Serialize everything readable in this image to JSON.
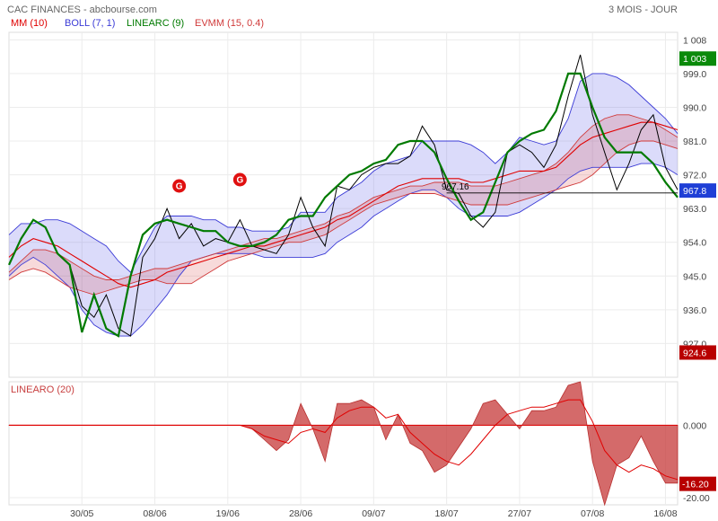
{
  "header": {
    "source": "CAC FINANCES - abcbourse.com",
    "period": "3 MOIS - JOUR",
    "legend": [
      {
        "label": "MM (10)",
        "color": "#e00000"
      },
      {
        "label": "BOLL (7, 1)",
        "color": "#3b3bd6"
      },
      {
        "label": "LINEARC (9)",
        "color": "#007a00"
      },
      {
        "label": "EVMM (15, 0.4)",
        "color": "#d03a3a"
      }
    ]
  },
  "signals": [
    {
      "label": "G",
      "x": 14
    },
    {
      "label": "G",
      "x": 19
    }
  ],
  "chart_data": [
    {
      "type": "line",
      "title": "CAC FINANCES",
      "ylim": [
        918,
        1010
      ],
      "y_ticks": [
        927.0,
        936.0,
        945.0,
        954.0,
        963.0,
        972.0,
        981.0,
        990.0,
        999.0,
        1008
      ],
      "y_tick_labels": [
        "927.0",
        "936.0",
        "945.0",
        "954.0",
        "963.0",
        "972.0",
        "981.0",
        "990.0",
        "999.0",
        "1 008"
      ],
      "x_ticks": [
        {
          "i": 6,
          "label": "30/05"
        },
        {
          "i": 12,
          "label": "08/06"
        },
        {
          "i": 18,
          "label": "19/06"
        },
        {
          "i": 24,
          "label": "28/06"
        },
        {
          "i": 30,
          "label": "09/07"
        },
        {
          "i": 36,
          "label": "18/07"
        },
        {
          "i": 42,
          "label": "27/07"
        },
        {
          "i": 48,
          "label": "07/08"
        },
        {
          "i": 54,
          "label": "16/08"
        }
      ],
      "n_points": 56,
      "grid": true,
      "series": [
        {
          "name": "",
          "color": "#000000",
          "values": [
            948,
            955,
            960,
            958,
            951,
            948,
            937,
            934,
            940,
            931,
            929,
            950,
            955,
            963,
            955,
            959,
            953,
            955,
            954,
            960,
            953,
            952,
            951,
            956,
            966,
            958,
            953,
            969,
            968,
            972,
            974,
            975,
            975,
            977,
            985,
            980,
            968,
            967,
            961,
            958,
            962,
            978,
            980,
            978,
            974,
            980,
            993,
            1004,
            988,
            978,
            968,
            975,
            984,
            988,
            974,
            968
          ]
        },
        {
          "name": "MM (10)",
          "color": "#e00000",
          "values": [
            950,
            953,
            955,
            954,
            953,
            951,
            949,
            947,
            945,
            943,
            942,
            943,
            944,
            946,
            947,
            948,
            949,
            950,
            951,
            952,
            953,
            953,
            954,
            955,
            956,
            957,
            958,
            960,
            961,
            963,
            965,
            967,
            969,
            970,
            971,
            971,
            971,
            971,
            970,
            970,
            971,
            972,
            973,
            973,
            973,
            974,
            977,
            980,
            982,
            983,
            984,
            985,
            986,
            986,
            985,
            984
          ]
        },
        {
          "name": "BOLL (7, 1) upper",
          "color": "#3b3bd6",
          "values": [
            956,
            959,
            959,
            960,
            960,
            959,
            957,
            955,
            953,
            949,
            946,
            952,
            958,
            961,
            961,
            961,
            960,
            960,
            958,
            958,
            957,
            957,
            957,
            958,
            962,
            962,
            962,
            966,
            968,
            970,
            973,
            975,
            976,
            977,
            981,
            981,
            981,
            981,
            980,
            978,
            975,
            978,
            982,
            981,
            980,
            981,
            987,
            997,
            999,
            999,
            998,
            996,
            993,
            990,
            987,
            983
          ]
        },
        {
          "name": "BOLL (7, 1) lower",
          "color": "#3b3bd6",
          "values": [
            945,
            948,
            950,
            948,
            945,
            942,
            936,
            932,
            930,
            929,
            929,
            932,
            936,
            940,
            945,
            949,
            950,
            951,
            951,
            951,
            951,
            950,
            950,
            950,
            950,
            950,
            951,
            954,
            956,
            958,
            961,
            963,
            965,
            967,
            968,
            968,
            966,
            963,
            961,
            961,
            961,
            961,
            962,
            964,
            966,
            968,
            971,
            973,
            974,
            974,
            974,
            974,
            975,
            975,
            974,
            972
          ]
        },
        {
          "name": "LINEARC (9)",
          "color": "#007a00",
          "values": [
            948,
            955,
            960,
            958,
            951,
            948,
            930,
            940,
            931,
            929,
            945,
            956,
            959,
            960,
            959,
            958,
            957,
            957,
            954,
            953,
            953,
            954,
            956,
            960,
            961,
            961,
            966,
            969,
            972,
            973,
            975,
            976,
            980,
            981,
            981,
            978,
            971,
            965,
            960,
            962,
            970,
            978,
            981,
            983,
            984,
            989,
            999,
            999,
            990,
            982,
            978,
            978,
            978,
            975,
            970,
            966
          ]
        },
        {
          "name": "EVMM (15, 0.4) upper",
          "color": "#d03a3a",
          "values": [
            946,
            949,
            952,
            952,
            951,
            949,
            947,
            945,
            944,
            944,
            945,
            946,
            947,
            947,
            948,
            949,
            950,
            951,
            952,
            953,
            954,
            955,
            955,
            956,
            957,
            958,
            959,
            961,
            962,
            964,
            966,
            967,
            968,
            969,
            969,
            970,
            970,
            970,
            969,
            969,
            969,
            970,
            971,
            972,
            973,
            975,
            978,
            982,
            985,
            987,
            988,
            988,
            987,
            986,
            984,
            982
          ]
        },
        {
          "name": "EVMM (15, 0.4) lower",
          "color": "#d03a3a",
          "values": [
            944,
            946,
            947,
            946,
            944,
            942,
            941,
            940,
            941,
            942,
            943,
            944,
            944,
            943,
            943,
            943,
            945,
            947,
            949,
            950,
            951,
            952,
            953,
            954,
            954,
            955,
            956,
            958,
            960,
            962,
            964,
            965,
            966,
            967,
            967,
            967,
            966,
            965,
            964,
            964,
            964,
            964,
            965,
            966,
            967,
            968,
            969,
            970,
            972,
            975,
            978,
            980,
            981,
            981,
            980,
            979
          ]
        }
      ],
      "hline": {
        "value": 967.16,
        "label": "967.16"
      },
      "last_value_badges": [
        {
          "value": 1003,
          "label": "1 003",
          "color": "#0a8a0a"
        },
        {
          "value": 967.8,
          "label": "967.8",
          "color": "#1f3fd6"
        },
        {
          "value": 924.6,
          "label": "924.6",
          "color": "#b80000"
        }
      ]
    },
    {
      "type": "area",
      "title": "LINEARO (20)",
      "ylim": [
        -22,
        12
      ],
      "y_ticks": [
        0,
        -20
      ],
      "y_tick_labels": [
        "0.000",
        "-20.00"
      ],
      "series": [
        {
          "name": "LINEARO (20)",
          "color": "#c84040",
          "values": [
            0,
            0,
            0,
            0,
            0,
            0,
            0,
            0,
            0,
            0,
            0,
            0,
            0,
            0,
            0,
            0,
            0,
            0,
            0,
            0,
            -1,
            -4,
            -7,
            -4,
            6,
            -1,
            -10,
            6,
            6,
            7,
            5,
            -4,
            3,
            -5,
            -7,
            -13,
            -11,
            -6,
            -1,
            6,
            7,
            3,
            -1,
            4,
            4,
            5,
            11,
            12,
            -10,
            -22,
            -11,
            -9,
            -3,
            -10,
            -16,
            -16
          ]
        },
        {
          "name": "",
          "color": "#e00000",
          "values": [
            0,
            0,
            0,
            0,
            0,
            0,
            0,
            0,
            0,
            0,
            0,
            0,
            0,
            0,
            0,
            0,
            0,
            0,
            0,
            0,
            -1,
            -3,
            -4,
            -5,
            -2,
            -1,
            -2,
            2,
            4,
            5,
            5,
            2,
            3,
            -2,
            -5,
            -8,
            -10,
            -11,
            -8,
            -4,
            0,
            3,
            4,
            5,
            5,
            6,
            7,
            7,
            1,
            -7,
            -11,
            -13,
            -11,
            -12,
            -14,
            -15
          ]
        }
      ],
      "last_value_badges": [
        {
          "value": -16.2,
          "label": "-16.20",
          "color": "#b80000"
        }
      ]
    }
  ]
}
